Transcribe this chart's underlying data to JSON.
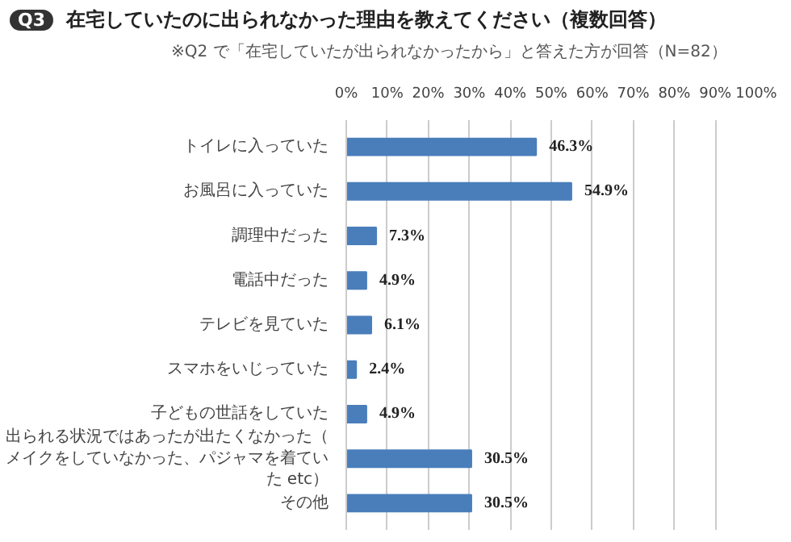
{
  "chart_data": {
    "type": "bar",
    "orientation": "horizontal",
    "title": "在宅していたのに出られなかった理由を教えてください（複数回答）",
    "subtitle": "※Q2 で「在宅していたが出られなかったから」と答えた方が回答（N=82）",
    "annotations": [
      "Q3"
    ],
    "categories": [
      "トイレに入っていた",
      "お風呂に入っていた",
      "調理中だった",
      "電話中だった",
      "テレビを見ていた",
      "スマホをいじっていた",
      "子どもの世話をしていた",
      "出られる状況ではあったが出たくなかった（メイクをしていなかった、パジャマを着ていた etc）",
      "その他"
    ],
    "values": [
      46.3,
      54.9,
      7.3,
      4.9,
      6.1,
      2.4,
      4.9,
      30.5,
      30.5
    ],
    "value_labels": [
      "46.3%",
      "54.9%",
      "7.3%",
      "4.9%",
      "6.1%",
      "2.4%",
      "4.9%",
      "30.5%",
      "30.5%"
    ],
    "color": "#4a7ebb",
    "xlim": [
      0,
      100
    ],
    "xticks": [
      {
        "value": 0,
        "label": "0%"
      },
      {
        "value": 10,
        "label": "10%"
      },
      {
        "value": 20,
        "label": "20%"
      },
      {
        "value": 30,
        "label": "30%"
      },
      {
        "value": 40,
        "label": "40%"
      },
      {
        "value": 50,
        "label": "50%"
      },
      {
        "value": 60,
        "label": "60%"
      },
      {
        "value": 70,
        "label": "70%"
      },
      {
        "value": 80,
        "label": "80%"
      },
      {
        "value": 90,
        "label": "90%"
      },
      {
        "value": 100,
        "label": "100%"
      }
    ],
    "grid": "x"
  }
}
